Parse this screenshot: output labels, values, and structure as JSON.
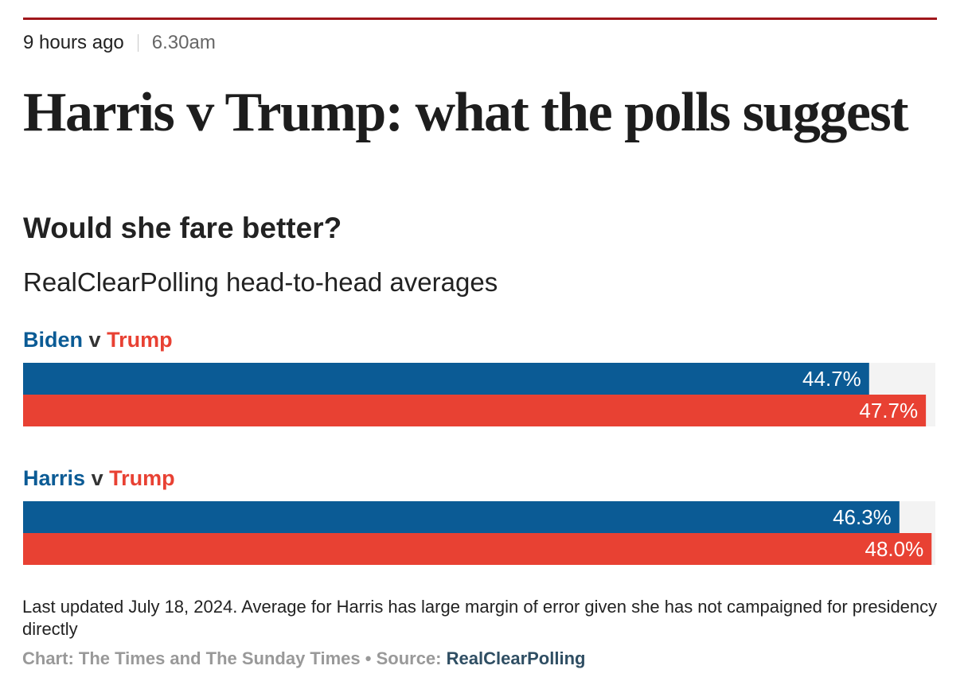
{
  "article": {
    "relative_time": "9 hours ago",
    "time": "6.30am",
    "headline": "Harris v Trump: what the polls suggest"
  },
  "colors": {
    "democrat": "#0b5b95",
    "republican": "#e84133",
    "track": "#f3f3f3",
    "rule": "#a0171b"
  },
  "chart_data": {
    "type": "bar",
    "orientation": "horizontal",
    "title": "Would she fare better?",
    "subtitle": "RealClearPolling head-to-head averages",
    "xlim": [
      0,
      48.2
    ],
    "unit": "%",
    "groups": [
      {
        "name_a": "Biden",
        "versus": "v",
        "name_b": "Trump",
        "bars": [
          {
            "candidate": "Biden",
            "value": 44.7,
            "label": "44.7%",
            "party": "democrat"
          },
          {
            "candidate": "Trump",
            "value": 47.7,
            "label": "47.7%",
            "party": "republican"
          }
        ]
      },
      {
        "name_a": "Harris",
        "versus": "v",
        "name_b": "Trump",
        "bars": [
          {
            "candidate": "Harris",
            "value": 46.3,
            "label": "46.3%",
            "party": "democrat"
          },
          {
            "candidate": "Trump",
            "value": 48.0,
            "label": "48.0%",
            "party": "republican"
          }
        ]
      }
    ],
    "note": "Last updated July 18, 2024. Average for Harris has large margin of error given she has not campaigned for presidency directly",
    "credit_label": "Chart: The Times and The Sunday Times",
    "credit_separator": "•",
    "source_label": "Source:",
    "source_link": "RealClearPolling"
  }
}
